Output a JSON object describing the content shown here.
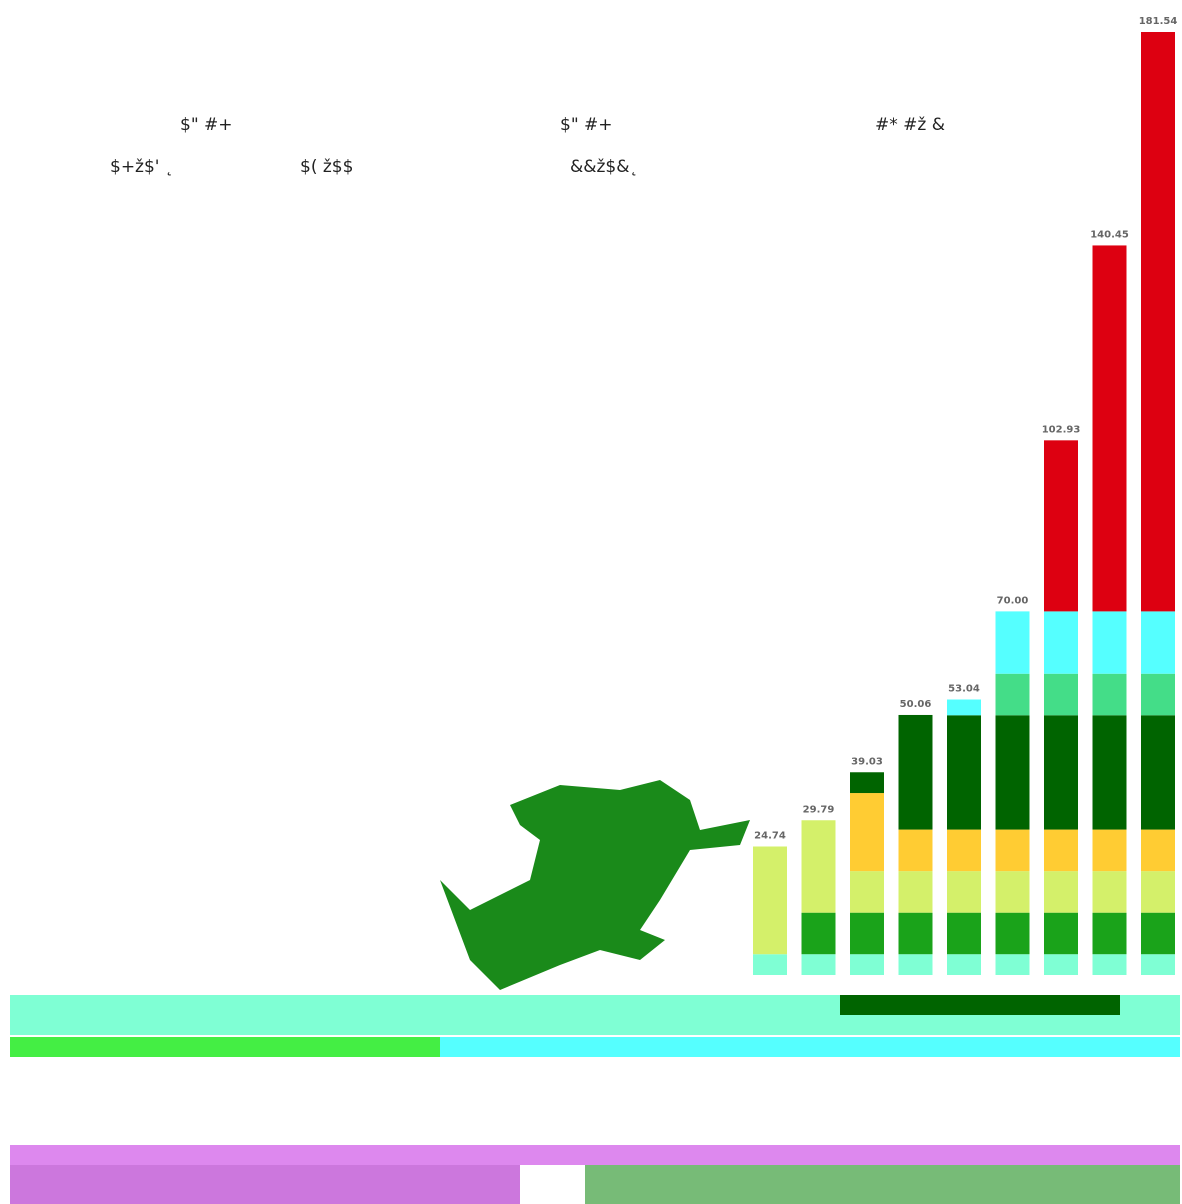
{
  "headers": [
    "$\" #+",
    "$\" #+",
    "#* #ž &"
  ],
  "subheaders": [
    "$+ž$' ˛",
    "$( ž$$",
    "&&ž$&˛"
  ],
  "chart_data": {
    "type": "stacked_bar",
    "series": [
      {
        "color": "#7fffd4",
        "values": [
          4,
          4,
          4,
          4,
          4,
          4,
          4,
          4,
          4
        ]
      },
      {
        "color": "#1aa31a",
        "values": [
          0,
          8,
          8,
          8,
          8,
          8,
          8,
          8,
          8
        ]
      },
      {
        "color": "#d4f06a",
        "values": [
          20.74,
          17.79,
          8,
          8,
          8,
          8,
          8,
          8,
          8
        ]
      },
      {
        "color": "#ffcc33",
        "values": [
          0,
          0,
          15.03,
          8,
          8,
          8,
          8,
          8,
          8
        ]
      },
      {
        "color": "#006400",
        "values": [
          0,
          0,
          4,
          22.06,
          22,
          22,
          22,
          22,
          22
        ]
      },
      {
        "color": "#44dd88",
        "values": [
          0,
          0,
          0,
          0,
          0,
          8,
          8,
          8,
          8
        ]
      },
      {
        "color": "#55ffff",
        "values": [
          0,
          0,
          0,
          0,
          3.04,
          12,
          12,
          12,
          12
        ]
      },
      {
        "color": "#dd0011",
        "values": [
          0,
          0,
          0,
          0,
          0,
          0,
          32.93,
          70.45,
          111.54
        ]
      }
    ],
    "totals": [
      {
        "value": 24.74,
        "label": "24.74"
      },
      {
        "value": 29.79,
        "label": "29.79"
      },
      {
        "value": 39.03,
        "label": "39.03"
      },
      {
        "value": 50.06,
        "label": "50.06"
      },
      {
        "value": 53.04,
        "label": "53.04"
      },
      {
        "value": 70,
        "label": "70.00"
      },
      {
        "value": 102.93,
        "label": "102.93"
      },
      {
        "value": 140.45,
        "label": "140.45"
      },
      {
        "value": 181.54,
        "label": "181.54"
      }
    ]
  }
}
